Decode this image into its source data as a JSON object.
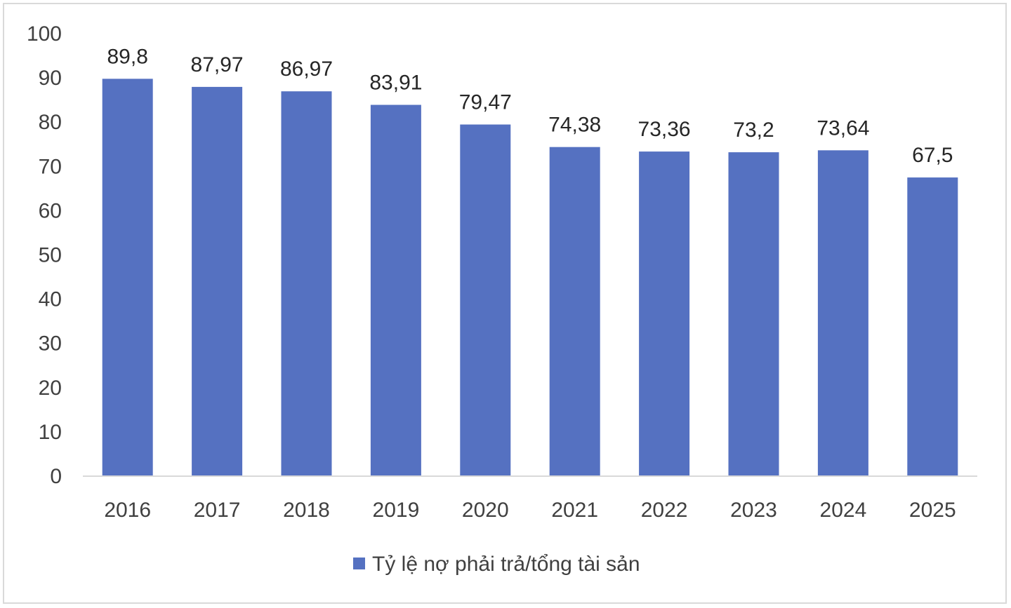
{
  "chart_data": {
    "type": "bar",
    "categories": [
      "2016",
      "2017",
      "2018",
      "2019",
      "2020",
      "2021",
      "2022",
      "2023",
      "2024",
      "2025"
    ],
    "series": [
      {
        "name": "Tỷ lệ nợ phải trả/tổng tài sản",
        "values": [
          89.8,
          87.97,
          86.97,
          83.91,
          79.47,
          74.38,
          73.36,
          73.2,
          73.64,
          67.5
        ],
        "labels": [
          "89,8",
          "87,97",
          "86,97",
          "83,91",
          "79,47",
          "74,38",
          "73,36",
          "73,2",
          "73,64",
          "67,5"
        ],
        "color": "#5571c1"
      }
    ],
    "ylim": [
      0,
      100
    ],
    "y_ticks": [
      0,
      10,
      20,
      30,
      40,
      50,
      60,
      70,
      80,
      90,
      100
    ],
    "grid": false,
    "legend_position": "bottom",
    "title": "",
    "xlabel": "",
    "ylabel": ""
  }
}
